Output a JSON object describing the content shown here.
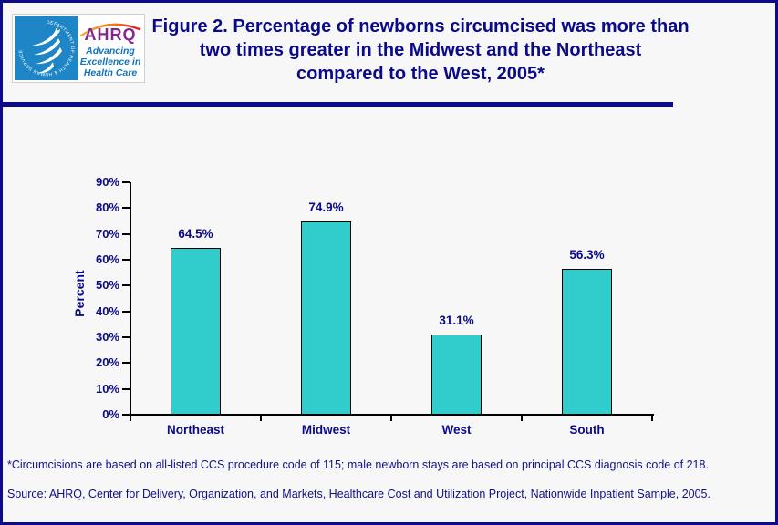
{
  "page": {
    "background": "#f7f7f7",
    "border_color": "#0b0b8b"
  },
  "header": {
    "logo": {
      "hhs_circular_text": "DEPARTMENT OF HEALTH & HUMAN SERVICES · USA",
      "ahrq_acronym": "AHRQ",
      "tagline_lines": [
        "Advancing",
        "Excellence in",
        "Health Care"
      ],
      "colors": {
        "hhs_blue": "#1e86c6",
        "ahrq_purple": "#86278c",
        "tagline_blue": "#1374bd"
      }
    },
    "title_lines": [
      "Figure 2. Percentage of newborns circumcised was more than",
      "two times greater in the Midwest and the Northeast",
      "compared to the West, 2005*"
    ],
    "title_color": "#0a0a8a"
  },
  "chart_data": {
    "type": "bar",
    "categories": [
      "Northeast",
      "Midwest",
      "West",
      "South"
    ],
    "values": [
      64.5,
      74.9,
      31.1,
      56.3
    ],
    "value_labels": [
      "64.5%",
      "74.9%",
      "31.1%",
      "56.3%"
    ],
    "title": "",
    "xlabel": "",
    "ylabel": "Percent",
    "ylim": [
      0,
      90
    ],
    "ytick_step": 10,
    "ytick_labels": [
      "0%",
      "10%",
      "20%",
      "30%",
      "40%",
      "50%",
      "60%",
      "70%",
      "80%",
      "90%"
    ],
    "grid": false,
    "legend": null,
    "bar_color": "#31cdcd",
    "bar_border_color": "#000000",
    "label_color": "#0a0a8a"
  },
  "footnotes": {
    "note": "*Circumcisions are based on all-listed CCS procedure code of 115; male newborn stays are based on principal CCS diagnosis code of 218.",
    "source": "Source: AHRQ, Center for Delivery, Organization, and Markets, Healthcare Cost and Utilization Project, Nationwide Inpatient Sample, 2005."
  }
}
